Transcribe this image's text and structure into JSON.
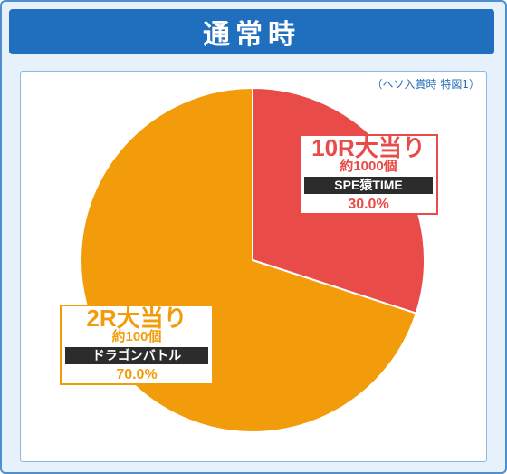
{
  "title": "通常時",
  "note": "（ヘソ入賞時 特図1）",
  "chart_data": {
    "type": "pie",
    "slices": [
      {
        "label": "10R大当り",
        "count": "約1000個",
        "mode": "SPE猿TIME",
        "value": 30.0,
        "display": "30.0%",
        "color": "#e84b48"
      },
      {
        "label": "2R大当り",
        "count": "約100個",
        "mode": "ドラゴンバトル",
        "value": 70.0,
        "display": "70.0%",
        "color": "#f39c0b"
      }
    ],
    "start": "12 o'clock",
    "direction": "clockwise"
  },
  "colors": {
    "title_bg": "#1f6fbe",
    "frame": "#4f8fd1",
    "accent_red": "#e84b48",
    "accent_orange": "#f39c0b"
  }
}
